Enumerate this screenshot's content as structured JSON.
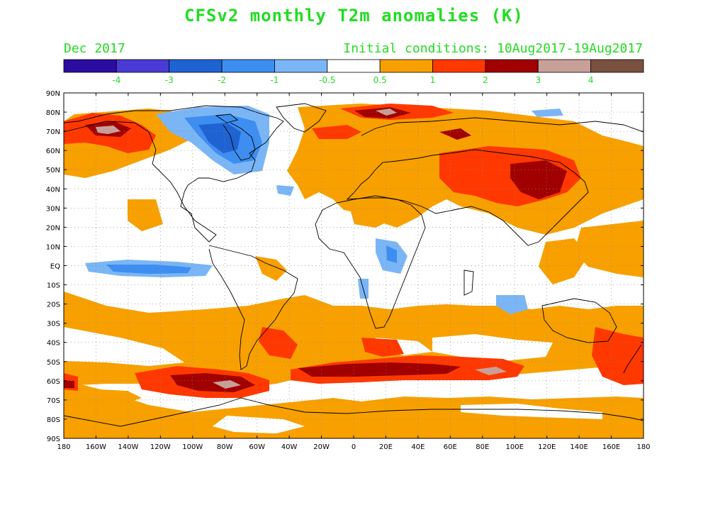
{
  "title": "CFSv2 monthly T2m anomalies (K)",
  "valid_month": "Dec 2017",
  "initial_conditions": "Initial conditions: 10Aug2017-19Aug2017",
  "legend": {
    "colors": [
      "#2a0ca0",
      "#4a3ad6",
      "#1f63d2",
      "#3d8ef0",
      "#7ab6f6",
      "#ffffff",
      "#f7a000",
      "#ff3800",
      "#a00000",
      "#c8a098",
      "#7a5040"
    ],
    "labels": [
      "-4",
      "-3",
      "-2",
      "-1",
      "-0.5",
      "0.5",
      "1",
      "2",
      "3",
      "4"
    ]
  },
  "axes": {
    "lat_labels": [
      "90N",
      "80N",
      "70N",
      "60N",
      "50N",
      "40N",
      "30N",
      "20N",
      "10N",
      "EQ",
      "10S",
      "20S",
      "30S",
      "40S",
      "50S",
      "60S",
      "70S",
      "80S",
      "90S"
    ],
    "lon_labels": [
      "180",
      "160W",
      "140W",
      "120W",
      "100W",
      "80W",
      "60W",
      "40W",
      "20W",
      "0",
      "20E",
      "40E",
      "60E",
      "80E",
      "100E",
      "120E",
      "140E",
      "160E",
      "180"
    ]
  },
  "anomaly_regions": [
    {
      "name": "Canada / Hudson Bay cold anomaly",
      "level": "-2"
    },
    {
      "name": "Equatorial Pacific cold tongue",
      "level": "-1"
    },
    {
      "name": "Alaska / Bering warm anomaly",
      "level": "3"
    },
    {
      "name": "Central Asia / Mongolia warm anomaly",
      "level": "3"
    },
    {
      "name": "Southern Ocean warm belt",
      "level": "3"
    },
    {
      "name": "Barents / Kara Sea warm anomaly",
      "level": "4"
    }
  ]
}
